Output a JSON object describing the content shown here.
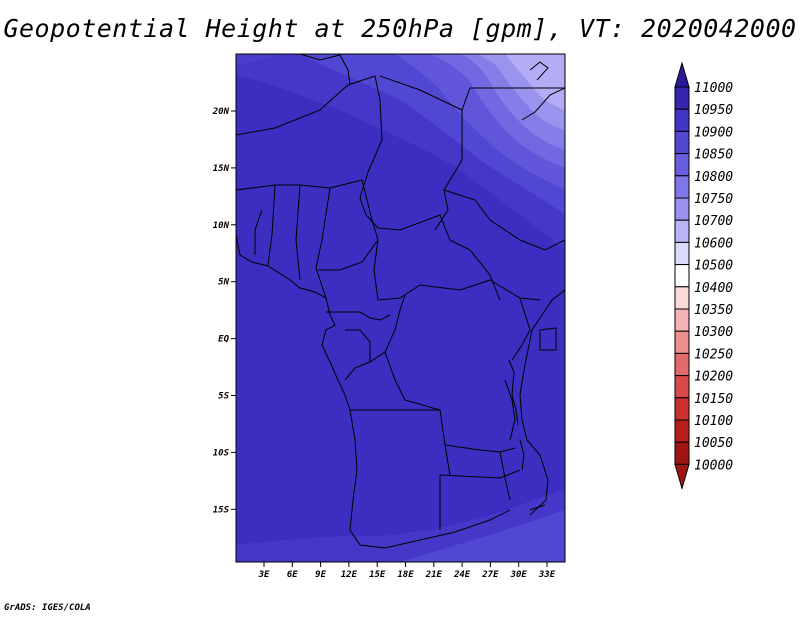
{
  "title": "Geopotential Height at 250hPa [gpm], VT: 2020042000",
  "footer": "GrADS: IGES/COLA",
  "colors": {
    "map_base": "#3a2fc0",
    "map_high_1": "#4a3ed0",
    "map_high_2": "#5d54dc",
    "map_high_3": "#7a72e6",
    "map_high_4": "#9e98ef",
    "map_high_5": "#c4c0f8",
    "border": "#000000"
  },
  "map": {
    "lat_labels": [
      "20N",
      "15N",
      "10N",
      "5N",
      "EQ",
      "5S",
      "10S",
      "15S"
    ],
    "lon_labels": [
      "3E",
      "6E",
      "9E",
      "12E",
      "15E",
      "18E",
      "21E",
      "24E",
      "27E",
      "30E",
      "33E"
    ]
  },
  "colorbar": {
    "levels": [
      "11000",
      "10950",
      "10900",
      "10850",
      "10800",
      "10750",
      "10700",
      "10600",
      "10500",
      "10400",
      "10350",
      "10300",
      "10250",
      "10200",
      "10150",
      "10100",
      "10050",
      "10000"
    ],
    "colors": [
      "#2a1a9a",
      "#3525b0",
      "#4236c4",
      "#5448d2",
      "#685ede",
      "#7f77e8",
      "#9993ef",
      "#b8b4f5",
      "#dcdafb",
      "#ffffff",
      "#fbdada",
      "#f5b4b4",
      "#ed8f8f",
      "#e36a6a",
      "#d84a4a",
      "#cc3030",
      "#b81e1e",
      "#a01414"
    ]
  },
  "chart_data": {
    "type": "heatmap",
    "title": "Geopotential Height at 250hPa [gpm], VT: 2020042000",
    "xlabel": "",
    "ylabel": "",
    "x_range": [
      0,
      35
    ],
    "y_range": [
      -19,
      25
    ],
    "x_ticks": [
      "3E",
      "6E",
      "9E",
      "12E",
      "15E",
      "18E",
      "21E",
      "24E",
      "27E",
      "30E",
      "33E"
    ],
    "y_ticks": [
      "20N",
      "15N",
      "10N",
      "5N",
      "EQ",
      "5S",
      "10S",
      "15S"
    ],
    "color_levels": [
      10000,
      10050,
      10100,
      10150,
      10200,
      10250,
      10300,
      10350,
      10400,
      10500,
      10600,
      10700,
      10750,
      10800,
      10850,
      10900,
      10950,
      11000
    ]
  }
}
